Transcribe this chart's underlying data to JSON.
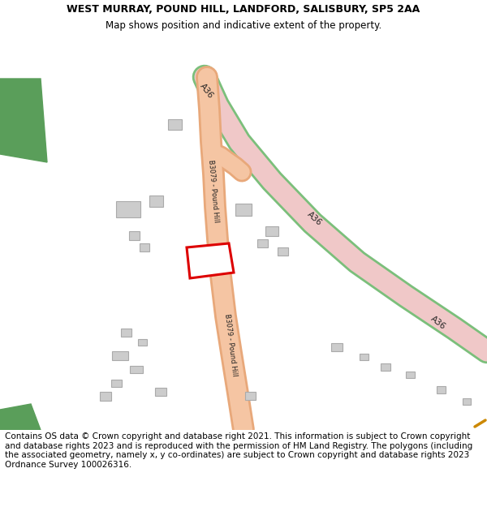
{
  "title_line1": "WEST MURRAY, POUND HILL, LANDFORD, SALISBURY, SP5 2AA",
  "title_line2": "Map shows position and indicative extent of the property.",
  "footer_text": "Contains OS data © Crown copyright and database right 2021. This information is subject to Crown copyright and database rights 2023 and is reproduced with the permission of HM Land Registry. The polygons (including the associated geometry, namely x, y co-ordinates) are subject to Crown copyright and database rights 2023 Ordnance Survey 100026316.",
  "bg_color": "#ffffff",
  "map_bg": "#ffffff",
  "road_A36_fill": "#f0c8c8",
  "road_A36_edge": "#7bbf7b",
  "road_B3079_fill": "#f5c5a3",
  "road_B3079_edge": "#e8a87a",
  "building_fill": "#cccccc",
  "building_edge": "#aaaaaa",
  "plot_fill": "#ffffff",
  "plot_edge": "#dd0000",
  "green_fill": "#5a9e5a",
  "orange_marker": "#cc8800",
  "title_fontsize": 9.0,
  "footer_fontsize": 7.5,
  "label_fontsize": 7.5,
  "road_label_color": "#222222"
}
